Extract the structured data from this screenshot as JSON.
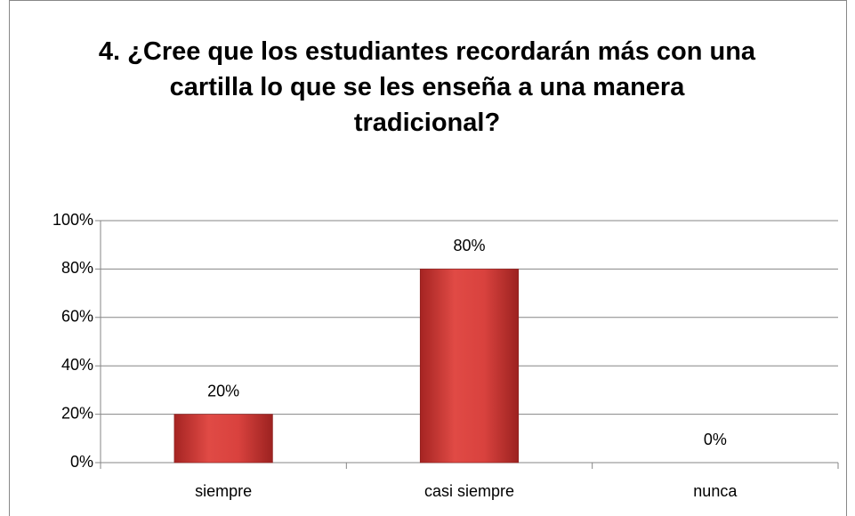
{
  "chart_data": {
    "type": "bar",
    "title": "4. ¿Cree que los estudiantes recordarán más con una cartilla lo que se les enseña a  una manera tradicional?",
    "categories": [
      "siempre",
      "casi siempre",
      "nunca"
    ],
    "values": [
      20,
      80,
      0
    ],
    "value_labels": [
      "20%",
      "80%",
      "0%"
    ],
    "color": "#c0302e",
    "ylim": [
      0,
      100
    ],
    "yticks": [
      {
        "value": 0,
        "label": "0%"
      },
      {
        "value": 20,
        "label": "20%"
      },
      {
        "value": 40,
        "label": "40%"
      },
      {
        "value": 60,
        "label": "60%"
      },
      {
        "value": 80,
        "label": "80%"
      },
      {
        "value": 100,
        "label": "100%"
      }
    ],
    "grid": true
  }
}
